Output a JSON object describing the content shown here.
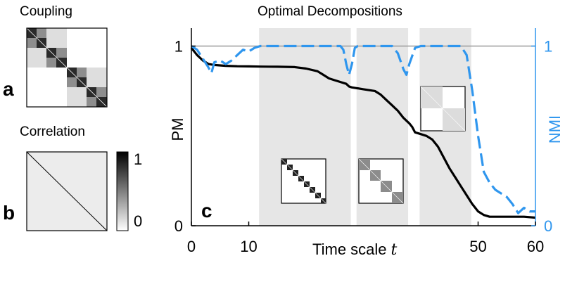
{
  "figure": {
    "panel_a": {
      "title": "Coupling",
      "letter": "a"
    },
    "panel_b": {
      "title": "Correlation",
      "letter": "b"
    },
    "colorbar": {
      "top_label": "1",
      "bottom_label": "0"
    },
    "panel_c": {
      "title": "Optimal Decompositions",
      "letter": "c"
    }
  },
  "colors": {
    "pm_line": "#000000",
    "nmi_line": "#2f96ee",
    "shade": "#e6e6e6",
    "reference_line": "#9a9a9a"
  },
  "chart_data": {
    "type": "line",
    "title": "Optimal Decompositions",
    "xlabel": "Time scale",
    "xlabel_symbol": "t",
    "ylabel": "PM",
    "ylabel_right": "NMI",
    "xlim": [
      0,
      60
    ],
    "ylim": [
      0,
      1.1
    ],
    "ylim_right": [
      0,
      1.1
    ],
    "x_ticks": [
      "0",
      "10",
      "50",
      "60"
    ],
    "x_tick_values": [
      0,
      10,
      50,
      60
    ],
    "y_ticks": [
      "0",
      "1"
    ],
    "y_tick_values": [
      0,
      1
    ],
    "y_ticks_right": [
      "0",
      "1"
    ],
    "y_tick_values_right": [
      0,
      1
    ],
    "reference_line_y": 1,
    "shaded_regions": [
      [
        11.8,
        27.8
      ],
      [
        28.8,
        37.8
      ],
      [
        39.8,
        48.8
      ]
    ],
    "series": [
      {
        "name": "PM",
        "axis": "left",
        "style": "solid",
        "x": [
          0,
          0.5,
          1,
          2,
          3,
          4,
          6,
          8,
          10,
          12,
          15,
          18,
          20,
          22,
          23,
          24,
          25,
          26,
          27,
          27.5,
          28,
          30,
          32,
          33,
          34,
          35,
          36,
          37,
          38,
          38.5,
          39,
          40,
          41,
          42,
          43,
          44,
          45,
          46,
          47,
          48,
          49,
          50,
          51,
          52,
          54,
          56,
          58,
          60
        ],
        "y": [
          0.99,
          0.97,
          0.95,
          0.92,
          0.9,
          0.895,
          0.89,
          0.888,
          0.887,
          0.886,
          0.885,
          0.883,
          0.875,
          0.86,
          0.84,
          0.82,
          0.81,
          0.8,
          0.79,
          0.775,
          0.77,
          0.76,
          0.75,
          0.73,
          0.7,
          0.67,
          0.64,
          0.6,
          0.57,
          0.55,
          0.52,
          0.51,
          0.5,
          0.48,
          0.44,
          0.38,
          0.32,
          0.27,
          0.22,
          0.17,
          0.12,
          0.08,
          0.06,
          0.05,
          0.05,
          0.05,
          0.05,
          0.045
        ]
      },
      {
        "name": "NMI",
        "axis": "right",
        "style": "dashed",
        "x": [
          0,
          1,
          2,
          3,
          3.5,
          4,
          5,
          6,
          7,
          8,
          9,
          10,
          11,
          12,
          14,
          16,
          18,
          20,
          22,
          26,
          26.5,
          27,
          27.5,
          28,
          28.5,
          29,
          32,
          35,
          36,
          37,
          37.5,
          38,
          39,
          40,
          42,
          44,
          47,
          48,
          49,
          50,
          51,
          52,
          53,
          54,
          55,
          56,
          57,
          58,
          59,
          60
        ],
        "y": [
          1,
          0.98,
          0.93,
          0.88,
          0.85,
          0.91,
          0.92,
          0.9,
          0.92,
          0.95,
          0.98,
          0.97,
          0.99,
          1,
          1,
          1,
          1,
          1,
          1,
          1,
          0.98,
          0.9,
          0.84,
          0.9,
          0.99,
          1,
          1,
          1,
          0.96,
          0.87,
          0.84,
          0.9,
          0.99,
          1,
          1,
          1,
          1,
          0.95,
          0.75,
          0.5,
          0.3,
          0.24,
          0.2,
          0.18,
          0.16,
          0.12,
          0.07,
          0.1,
          0.08,
          0.08
        ]
      }
    ]
  }
}
